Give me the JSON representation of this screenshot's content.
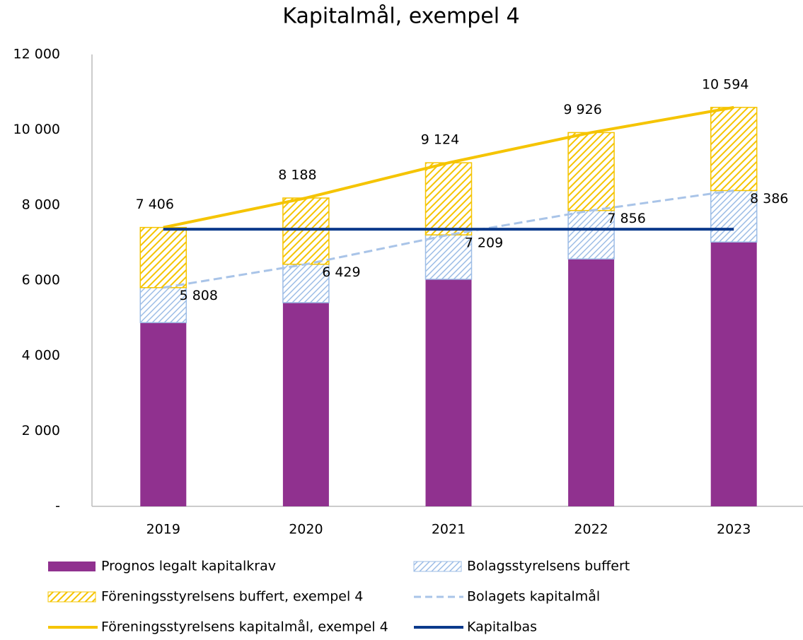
{
  "chart_data": {
    "type": "bar",
    "title": "Kapitalmål, exempel 4",
    "categories": [
      "2019",
      "2020",
      "2021",
      "2022",
      "2023"
    ],
    "ylim": [
      0,
      12000
    ],
    "yticks": [
      {
        "value": 0,
        "label": "-"
      },
      {
        "value": 2000,
        "label": "2 000"
      },
      {
        "value": 4000,
        "label": "4 000"
      },
      {
        "value": 6000,
        "label": "6 000"
      },
      {
        "value": 8000,
        "label": "8 000"
      },
      {
        "value": 10000,
        "label": "10 000"
      },
      {
        "value": 12000,
        "label": "12 000"
      }
    ],
    "series": [
      {
        "name": "Prognos legalt kapitalkrav",
        "type": "bar",
        "color": "#90318f",
        "values": [
          4880,
          5410,
          6030,
          6570,
          7020
        ]
      },
      {
        "name": "Bolagsstyrelsens buffert",
        "type": "bar",
        "color": "#9dbde6",
        "hatch": true,
        "values": [
          928,
          1019,
          1179,
          1286,
          1366
        ]
      },
      {
        "name": "Föreningsstyrelsens buffert, exempel 4",
        "type": "bar",
        "color": "#f5c400",
        "hatch": true,
        "values": [
          1598,
          1759,
          1915,
          2070,
          2208
        ]
      },
      {
        "name": "Bolagets kapitalmål",
        "type": "line",
        "color": "#a9c4e8",
        "dash": true,
        "values": [
          5808,
          6429,
          7209,
          7856,
          8386
        ],
        "value_labels": [
          "5 808",
          "6 429",
          "7 209",
          "7 856",
          "8 386"
        ]
      },
      {
        "name": "Föreningsstyrelsens kapitalmål, exempel 4",
        "type": "line",
        "color": "#f5c400",
        "values": [
          7406,
          8188,
          9124,
          9926,
          10594
        ],
        "value_labels": [
          "7 406",
          "8 188",
          "9 124",
          "9 926",
          "10 594"
        ]
      },
      {
        "name": "Kapitalbas",
        "type": "line",
        "color": "#0b3a8c",
        "values": [
          7360,
          7360,
          7360,
          7360,
          7360
        ]
      }
    ]
  }
}
